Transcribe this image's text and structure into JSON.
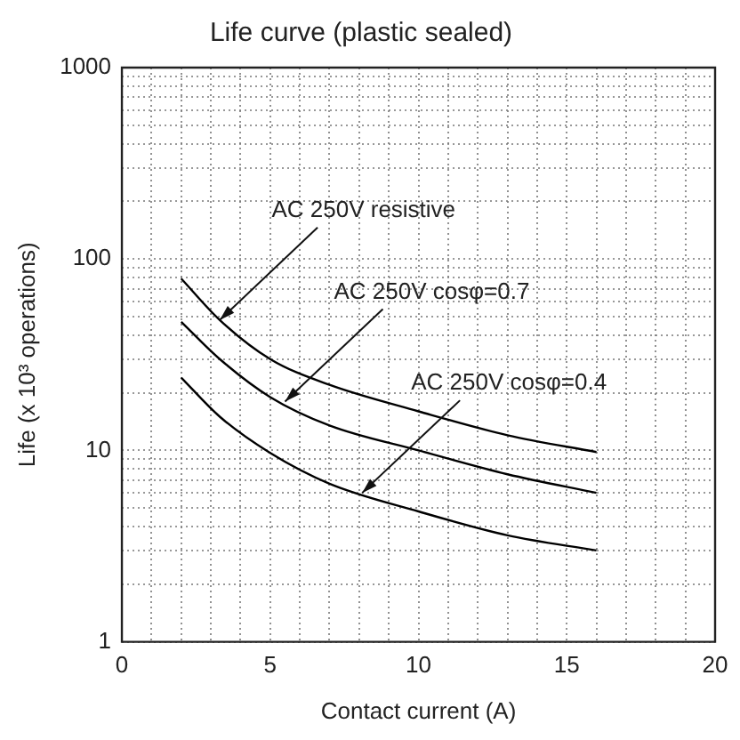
{
  "chart_data": {
    "type": "line",
    "title": "Life curve (plastic sealed)",
    "xlabel": "Contact current (A)",
    "ylabel": "Life (x 10³ operations)",
    "x": [
      2,
      3.3,
      5,
      7,
      10,
      13,
      16
    ],
    "series": [
      {
        "color": "#000000",
        "values": [
          79,
          48,
          30,
          22,
          16,
          12,
          9.8
        ]
      },
      {
        "color": "#000000",
        "values": [
          47,
          30,
          19,
          13.5,
          10,
          7.5,
          6
        ]
      },
      {
        "color": "#000000",
        "values": [
          24,
          15,
          9.7,
          6.7,
          4.8,
          3.6,
          3
        ]
      }
    ],
    "annotations": [
      {
        "text": "AC 250V resistive",
        "x": 3.3,
        "y": 48
      },
      {
        "text": "AC 250V cosφ=0.7",
        "x": 5.5,
        "y": 18
      },
      {
        "text": "AC 250V cosφ=0.4",
        "x": 8.1,
        "y": 6
      }
    ],
    "log": "y",
    "xlim": [
      0,
      20
    ],
    "ylim": [
      1,
      1000
    ],
    "xticks": [
      0,
      {
        "value": 1,
        "label": null
      },
      {
        "value": 2,
        "label": null
      },
      {
        "value": 3,
        "label": null
      },
      {
        "value": 4,
        "label": null
      },
      5,
      {
        "value": 6,
        "label": null
      },
      {
        "value": 7,
        "label": null
      },
      {
        "value": 8,
        "label": null
      },
      {
        "value": 9,
        "label": null
      },
      10,
      {
        "value": 11,
        "label": null
      },
      {
        "value": 12,
        "label": null
      },
      {
        "value": 13,
        "label": null
      },
      {
        "value": 14,
        "label": null
      },
      15,
      {
        "value": 16,
        "label": null
      },
      {
        "value": 17,
        "label": null
      },
      {
        "value": 18,
        "label": null
      },
      {
        "value": 19,
        "label": null
      },
      20
    ],
    "yticks": [
      1,
      {
        "value": 2,
        "label": null
      },
      {
        "value": 3,
        "label": null
      },
      {
        "value": 4,
        "label": null
      },
      {
        "value": 5,
        "label": null
      },
      {
        "value": 6,
        "label": null
      },
      {
        "value": 7,
        "label": null
      },
      {
        "value": 8,
        "label": null
      },
      {
        "value": 9,
        "label": null
      },
      10,
      {
        "value": 20,
        "label": null
      },
      {
        "value": 30,
        "label": null
      },
      {
        "value": 40,
        "label": null
      },
      {
        "value": 50,
        "label": null
      },
      {
        "value": 60,
        "label": null
      },
      {
        "value": 70,
        "label": null
      },
      {
        "value": 80,
        "label": null
      },
      {
        "value": 90,
        "label": null
      },
      100,
      {
        "value": 200,
        "label": null
      },
      {
        "value": 300,
        "label": null
      },
      {
        "value": 400,
        "label": null
      },
      {
        "value": 500,
        "label": null
      },
      {
        "value": 600,
        "label": null
      },
      {
        "value": 700,
        "label": null
      },
      {
        "value": 800,
        "label": null
      },
      {
        "value": 900,
        "label": null
      },
      1000
    ],
    "grid": true,
    "legend": false,
    "marker": "none",
    "line_style": "solid"
  }
}
